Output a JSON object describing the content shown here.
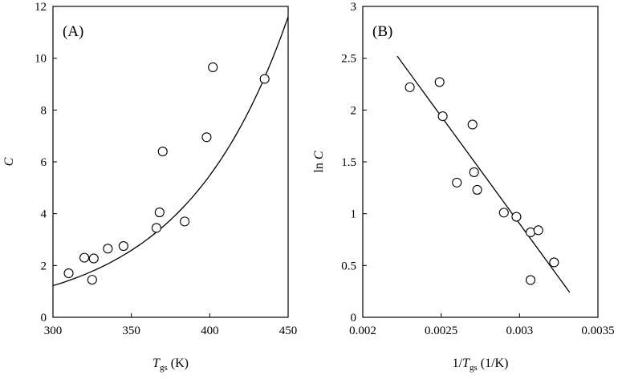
{
  "chart_data": [
    {
      "type": "scatter",
      "panel_label": "(A)",
      "xlabel": {
        "main": "T",
        "sub": "gs",
        "rest": " (K)"
      },
      "ylabel": "C",
      "xlim": [
        300,
        450
      ],
      "ylim": [
        0,
        12
      ],
      "xticks": [
        "300",
        "350",
        "400",
        "450"
      ],
      "yticks": [
        "0",
        "2",
        "4",
        "6",
        "8",
        "10",
        "12"
      ],
      "points": [
        [
          310,
          1.7
        ],
        [
          320,
          2.3
        ],
        [
          325,
          1.45
        ],
        [
          326,
          2.27
        ],
        [
          335,
          2.65
        ],
        [
          345,
          2.75
        ],
        [
          366,
          3.45
        ],
        [
          368,
          4.05
        ],
        [
          370,
          6.4
        ],
        [
          384,
          3.7
        ],
        [
          398,
          6.95
        ],
        [
          402,
          9.65
        ],
        [
          435,
          9.2
        ]
      ],
      "fit": {
        "type": "exponential",
        "x": [
          300,
          450
        ],
        "y": [
          1.22,
          11.6
        ]
      },
      "grid": false
    },
    {
      "type": "scatter",
      "panel_label": "(B)",
      "xlabel": {
        "pre": "1/",
        "main": "T",
        "sub": "gs",
        "rest": " (1/K)"
      },
      "ylabel": "ln C",
      "xlim": [
        0.002,
        0.0035
      ],
      "ylim": [
        0,
        3
      ],
      "xticks": [
        "0.002",
        "0.0025",
        "0.003",
        "0.0035"
      ],
      "yticks": [
        "0",
        "0.5",
        "1",
        "1.5",
        "2",
        "2.5",
        "3"
      ],
      "points": [
        [
          0.0023,
          2.22
        ],
        [
          0.00249,
          2.27
        ],
        [
          0.00251,
          1.94
        ],
        [
          0.0026,
          1.3
        ],
        [
          0.0027,
          1.86
        ],
        [
          0.00271,
          1.4
        ],
        [
          0.00273,
          1.23
        ],
        [
          0.0029,
          1.01
        ],
        [
          0.00298,
          0.97
        ],
        [
          0.00307,
          0.82
        ],
        [
          0.00312,
          0.84
        ],
        [
          0.00307,
          0.36
        ],
        [
          0.00322,
          0.53
        ]
      ],
      "fit": {
        "type": "linear",
        "x": [
          0.00222,
          0.00332
        ],
        "y": [
          2.52,
          0.24
        ]
      },
      "grid": false
    }
  ]
}
